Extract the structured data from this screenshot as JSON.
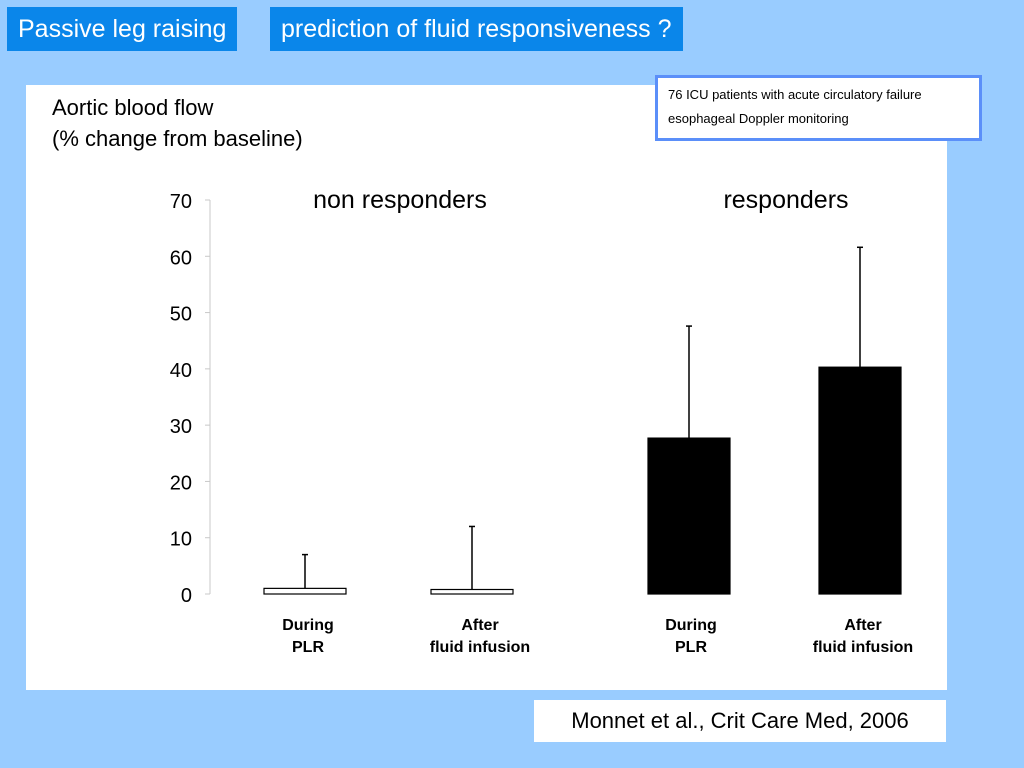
{
  "header": {
    "title_left": "Passive leg raising",
    "title_right": "prediction of fluid responsiveness ?"
  },
  "info_box": {
    "line1": "76 ICU patients with acute circulatory failure",
    "line2": "esophageal Doppler monitoring"
  },
  "citation": "Monnet et al., Crit Care Med, 2006",
  "chart_data": {
    "type": "bar",
    "ylabel_line1": "Aortic blood flow",
    "ylabel_line2": "(% change from baseline)",
    "ylim": [
      0,
      70
    ],
    "yticks": [
      0,
      10,
      20,
      30,
      40,
      50,
      60,
      70
    ],
    "grid": false,
    "groups": [
      {
        "label": "non responders",
        "bars": [
          {
            "label_line1": "During",
            "label_line2": "PLR",
            "value": 1,
            "error_top": 7,
            "fill": "#ffffff"
          },
          {
            "label_line1": "After",
            "label_line2": "fluid infusion",
            "value": 0.8,
            "error_top": 12,
            "fill": "#ffffff"
          }
        ]
      },
      {
        "label": "responders",
        "bars": [
          {
            "label_line1": "During",
            "label_line2": "PLR",
            "value": 27.7,
            "error_top": 47.6,
            "fill": "#000000"
          },
          {
            "label_line1": "After",
            "label_line2": "fluid infusion",
            "value": 40.3,
            "error_top": 61.6,
            "fill": "#000000"
          }
        ]
      }
    ]
  }
}
